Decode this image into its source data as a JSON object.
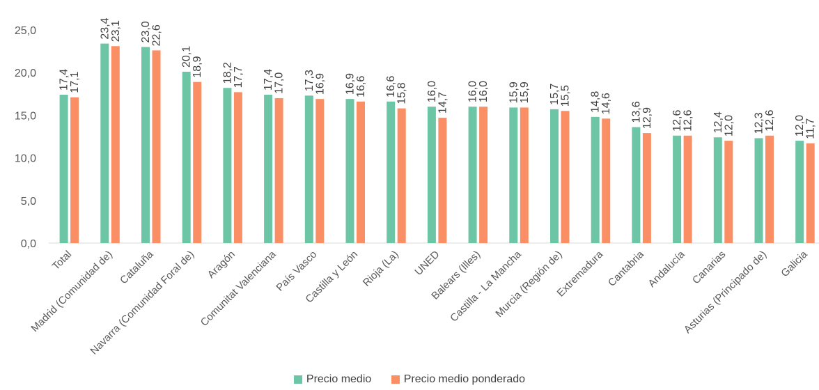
{
  "chart_data": {
    "type": "bar",
    "title": "",
    "xlabel": "",
    "ylabel": "",
    "ylim": [
      0,
      25
    ],
    "yticks": [
      "0,0",
      "5,0",
      "10,0",
      "15,0",
      "20,0",
      "25,0"
    ],
    "grid": false,
    "legend_position": "bottom",
    "categories": [
      "Total",
      "Madrid (Comunidad de)",
      "Cataluña",
      "Navarra (Comunidad Foral de)",
      "Aragón",
      "Comunitat Valenciana",
      "País Vasco",
      "Castilla y León",
      "Rioja (La)",
      "UNED",
      "Balears (Illes)",
      "Castilla - La Mancha",
      "Murcia (Región de)",
      "Extremadura",
      "Cantabria",
      "Andalucía",
      "Canarias",
      "Asturias (Principado de)",
      "Galicia"
    ],
    "series": [
      {
        "name": "Precio medio",
        "color": "#6cc5a4",
        "values": [
          17.4,
          23.4,
          23.0,
          20.1,
          18.2,
          17.4,
          17.3,
          16.9,
          16.6,
          16.0,
          16.0,
          15.9,
          15.7,
          14.8,
          13.6,
          12.6,
          12.4,
          12.3,
          12.0
        ],
        "labels": [
          "17,4",
          "23,4",
          "23,0",
          "20,1",
          "18,2",
          "17,4",
          "17,3",
          "16,9",
          "16,6",
          "16,0",
          "16,0",
          "15,9",
          "15,7",
          "14,8",
          "13,6",
          "12,6",
          "12,4",
          "12,3",
          "12,0"
        ]
      },
      {
        "name": "Precio medio ponderado",
        "color": "#fa8f65",
        "values": [
          17.1,
          23.1,
          22.6,
          18.9,
          17.7,
          17.0,
          16.9,
          16.6,
          15.8,
          14.7,
          16.0,
          15.9,
          15.5,
          14.6,
          12.9,
          12.6,
          12.0,
          12.6,
          11.7
        ],
        "labels": [
          "17,1",
          "23,1",
          "22,6",
          "18,9",
          "17,7",
          "17,0",
          "16,9",
          "16,6",
          "15,8",
          "14,7",
          "16,0",
          "15,9",
          "15,5",
          "14,6",
          "12,9",
          "12,6",
          "12,0",
          "12,6",
          "11,7"
        ]
      }
    ]
  }
}
